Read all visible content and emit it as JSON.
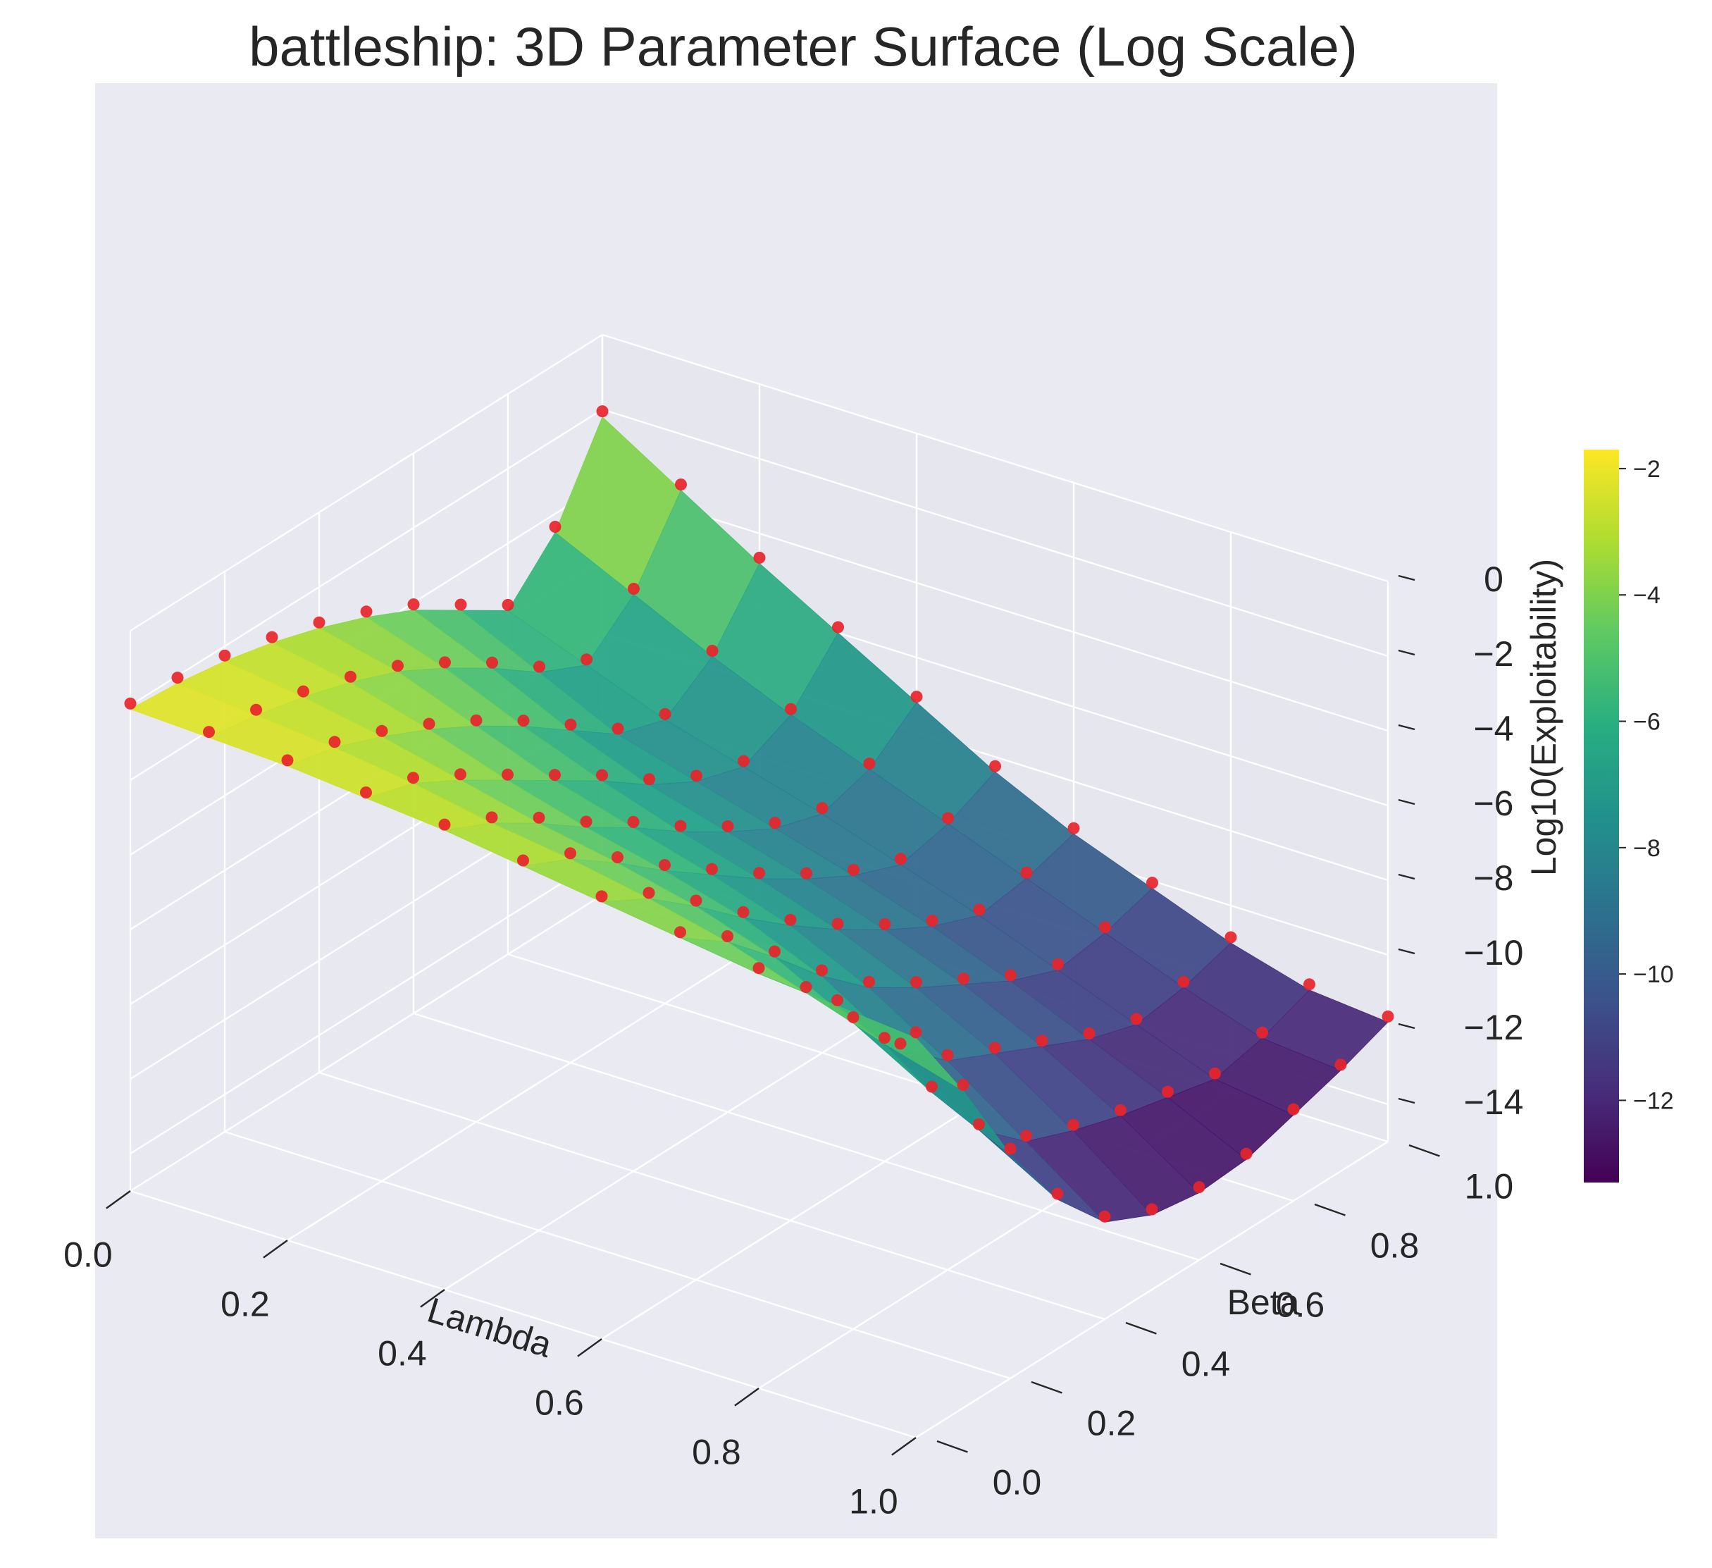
{
  "chart_data": {
    "type": "surface3d",
    "title": "battleship: 3D Parameter Surface (Log Scale)",
    "xlabel": "Lambda",
    "ylabel": "Beta",
    "zlabel": "Log10(Exploitability)",
    "xlim": [
      0,
      1
    ],
    "ylim": [
      0,
      1
    ],
    "zlim": [
      -15,
      0
    ],
    "x_ticks": [
      "0.0",
      "0.2",
      "0.4",
      "0.6",
      "0.8",
      "1.0"
    ],
    "y_ticks": [
      "0.0",
      "0.2",
      "0.4",
      "0.6",
      "0.8",
      "1.0"
    ],
    "z_ticks": [
      "0",
      "−2",
      "−4",
      "−6",
      "−8",
      "−10",
      "−12",
      "−14"
    ],
    "x_values": [
      0.0,
      0.1,
      0.2,
      0.3,
      0.4,
      0.5,
      0.6,
      0.7,
      0.8,
      0.9,
      1.0
    ],
    "y_values": [
      0.0,
      0.1,
      0.2,
      0.3,
      0.4,
      0.5,
      0.6,
      0.7,
      0.8,
      0.9,
      1.0
    ],
    "z_grid": [
      [
        -2.1,
        -2.2,
        -2.4,
        -2.7,
        -3.1,
        -3.6,
        -4.2,
        -5.0,
        -5.8,
        -4.5,
        -2.2
      ],
      [
        -2.2,
        -2.4,
        -2.7,
        -3.1,
        -3.6,
        -4.3,
        -5.1,
        -6.0,
        -6.6,
        -5.5,
        -3.5
      ],
      [
        -2.3,
        -2.6,
        -3.1,
        -3.7,
        -4.4,
        -5.2,
        -6.1,
        -7.0,
        -7.4,
        -6.5,
        -4.8
      ],
      [
        -2.5,
        -2.9,
        -3.6,
        -4.4,
        -5.2,
        -6.0,
        -6.9,
        -7.6,
        -8.0,
        -7.4,
        -6.0
      ],
      [
        -2.7,
        -3.3,
        -4.1,
        -5.0,
        -5.8,
        -6.7,
        -7.5,
        -8.2,
        -8.6,
        -8.2,
        -7.2
      ],
      [
        -3.0,
        -3.6,
        -4.5,
        -5.5,
        -6.4,
        -7.3,
        -8.1,
        -8.8,
        -9.3,
        -9.0,
        -8.4
      ],
      [
        -3.3,
        -4.0,
        -5.0,
        -6.1,
        -7.1,
        -8.0,
        -8.8,
        -9.5,
        -10.0,
        -9.8,
        -9.4
      ],
      [
        -3.6,
        -4.5,
        -5.7,
        -7.0,
        -8.1,
        -8.9,
        -9.6,
        -10.3,
        -10.8,
        -10.6,
        -10.2
      ],
      [
        -3.9,
        -5.2,
        -6.8,
        -8.3,
        -9.4,
        -10.0,
        -10.6,
        -11.2,
        -11.6,
        -11.4,
        -11.0
      ],
      [
        -4.1,
        -5.9,
        -8.0,
        -9.8,
        -10.9,
        -11.4,
        -11.8,
        -12.1,
        -12.4,
        -12.1,
        -11.6
      ],
      [
        -4.3,
        -6.5,
        -9.0,
        -11.0,
        -12.4,
        -13.0,
        -13.2,
        -13.1,
        -12.7,
        -12.3,
        -11.8
      ]
    ],
    "points": "sampled at every grid node (red markers)",
    "colormap": "viridis",
    "colorbar": {
      "label": "",
      "range": [
        -13.3,
        -1.7
      ],
      "ticks": [
        "−2",
        "−4",
        "−6",
        "−8",
        "−10",
        "−12"
      ]
    },
    "colors": {
      "pane": "#eaeaf2",
      "grid": "#ffffff",
      "marker": "#e8242a",
      "text": "#262626"
    }
  }
}
